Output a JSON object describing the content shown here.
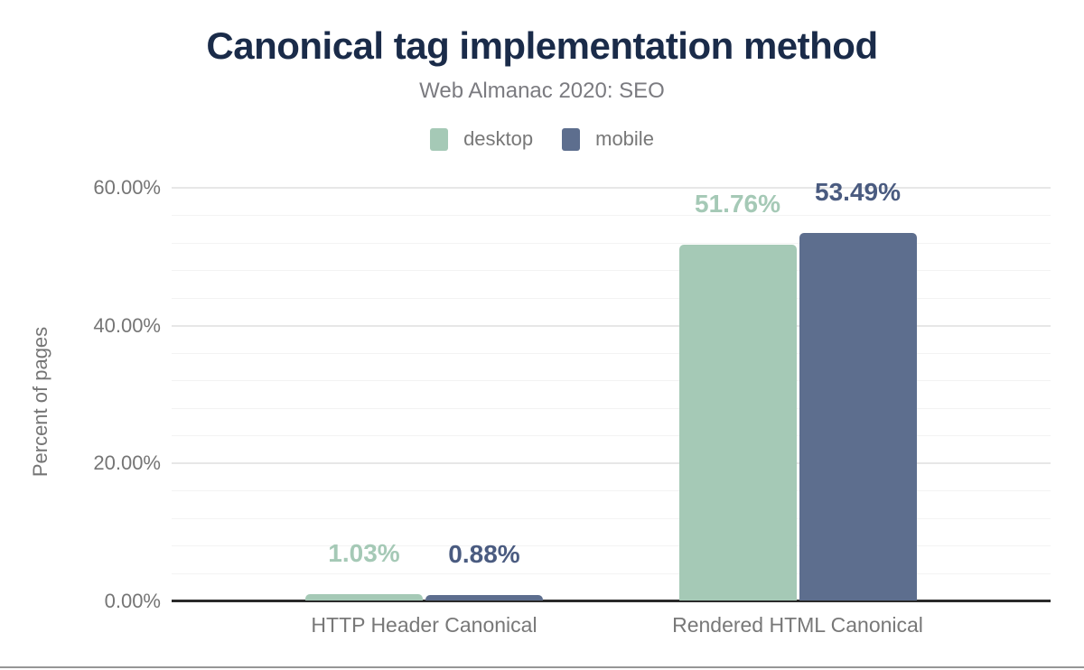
{
  "chart_data": {
    "type": "bar",
    "title": "Canonical tag implementation method",
    "subtitle": "Web Almanac 2020: SEO",
    "categories": [
      "HTTP Header Canonical",
      "Rendered HTML Canonical"
    ],
    "series": [
      {
        "name": "desktop",
        "color": "#a5c9b6",
        "label_color": "#a5c9b6",
        "values": [
          1.03,
          51.76
        ],
        "value_labels": [
          "1.03%",
          "51.76%"
        ]
      },
      {
        "name": "mobile",
        "color": "#5d6e8e",
        "label_color": "#4a5b80",
        "values": [
          0.88,
          53.49
        ],
        "value_labels": [
          "0.88%",
          "53.49%"
        ]
      }
    ],
    "xlabel": "",
    "ylabel": "Percent of pages",
    "ylim": [
      0,
      60
    ],
    "yticks": [
      {
        "v": 0,
        "label": "0.00%"
      },
      {
        "v": 20,
        "label": "20.00%"
      },
      {
        "v": 40,
        "label": "40.00%"
      },
      {
        "v": 60,
        "label": "60.00%"
      }
    ],
    "minor_grid_step_pct": 4,
    "major_grid_step_pct": 20,
    "grid": true,
    "legend_position": "top",
    "colors": {
      "title": "#1a2b49",
      "muted_text": "#787878",
      "axis_line": "#2a2a2a",
      "minor_grid": "#f3f3f3",
      "major_grid": "#e7e7e7"
    }
  }
}
